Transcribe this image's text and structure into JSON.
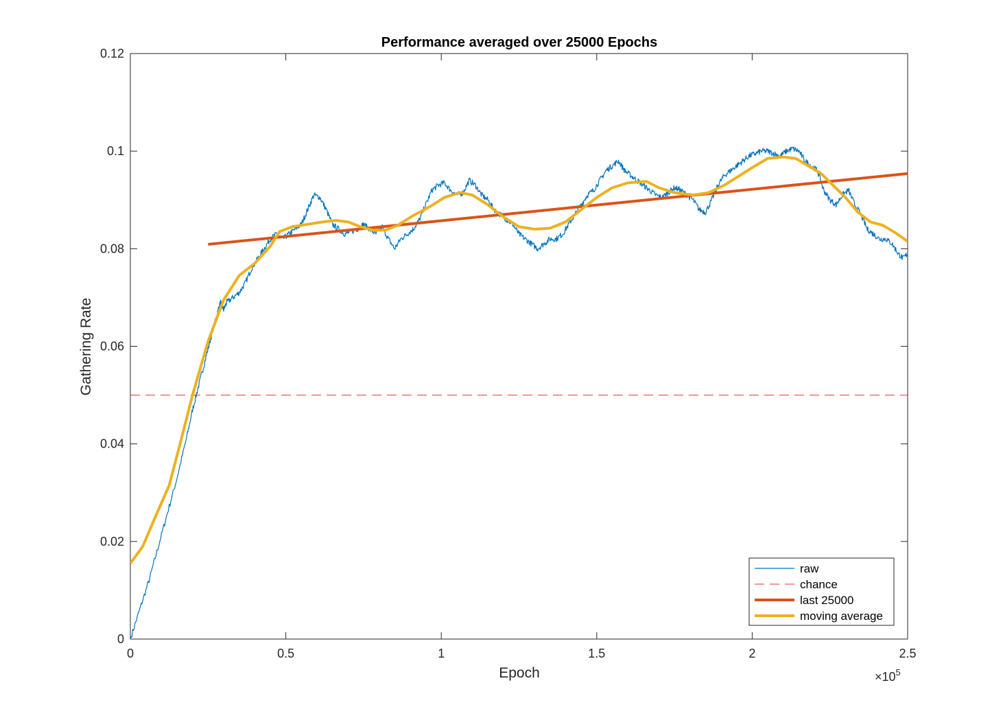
{
  "chart_data": {
    "type": "line",
    "title": "Performance averaged over 25000 Epochs",
    "xlabel": "Epoch",
    "ylabel": "Gathering Rate",
    "x_exponent_label": {
      "prefix": "×10",
      "exponent": "5"
    },
    "xlim": [
      0,
      250000
    ],
    "ylim": [
      0,
      0.12
    ],
    "x_ticks": [
      0,
      50000,
      100000,
      150000,
      200000,
      250000
    ],
    "x_tick_labels": [
      "0",
      "0.5",
      "1",
      "1.5",
      "2",
      "2.5"
    ],
    "y_ticks": [
      0,
      0.02,
      0.04,
      0.06,
      0.08,
      0.1,
      0.12
    ],
    "y_tick_labels": [
      "0",
      "0.02",
      "0.04",
      "0.06",
      "0.08",
      "0.1",
      "0.12"
    ],
    "grid": false,
    "legend_position": "bottom-right",
    "colors": {
      "raw": "#0072bd",
      "chance": "#e0352b",
      "last": "#d95319",
      "moving": "#edb120",
      "axis": "#262626"
    },
    "series": [
      {
        "name": "raw",
        "style": "thin-solid",
        "points": [
          [
            0,
            0
          ],
          [
            3000,
            0.006
          ],
          [
            6000,
            0.012
          ],
          [
            9000,
            0.019
          ],
          [
            12000,
            0.026
          ],
          [
            15000,
            0.033
          ],
          [
            18000,
            0.041
          ],
          [
            20000,
            0.047
          ],
          [
            22000,
            0.052
          ],
          [
            24000,
            0.057
          ],
          [
            26000,
            0.062
          ],
          [
            28000,
            0.067
          ],
          [
            29000,
            0.069
          ],
          [
            30000,
            0.0675
          ],
          [
            31000,
            0.069
          ],
          [
            33000,
            0.07
          ],
          [
            35000,
            0.071
          ],
          [
            37000,
            0.073
          ],
          [
            39000,
            0.076
          ],
          [
            41000,
            0.078
          ],
          [
            43000,
            0.08
          ],
          [
            45000,
            0.082
          ],
          [
            47000,
            0.083
          ],
          [
            49000,
            0.082
          ],
          [
            51000,
            0.083
          ],
          [
            53000,
            0.084
          ],
          [
            55000,
            0.085
          ],
          [
            57000,
            0.088
          ],
          [
            59000,
            0.091
          ],
          [
            61000,
            0.0905
          ],
          [
            63000,
            0.088
          ],
          [
            65000,
            0.085
          ],
          [
            67000,
            0.084
          ],
          [
            69000,
            0.083
          ],
          [
            71000,
            0.0835
          ],
          [
            73000,
            0.084
          ],
          [
            75000,
            0.085
          ],
          [
            77000,
            0.084
          ],
          [
            79000,
            0.083
          ],
          [
            81000,
            0.0845
          ],
          [
            83000,
            0.082
          ],
          [
            85000,
            0.08
          ],
          [
            87000,
            0.082
          ],
          [
            89000,
            0.083
          ],
          [
            91000,
            0.084
          ],
          [
            93000,
            0.086
          ],
          [
            95000,
            0.089
          ],
          [
            97000,
            0.092
          ],
          [
            99000,
            0.093
          ],
          [
            101000,
            0.0935
          ],
          [
            103000,
            0.092
          ],
          [
            105000,
            0.091
          ],
          [
            107000,
            0.0915
          ],
          [
            109000,
            0.094
          ],
          [
            111000,
            0.093
          ],
          [
            113000,
            0.091
          ],
          [
            115000,
            0.09
          ],
          [
            117000,
            0.088
          ],
          [
            119000,
            0.087
          ],
          [
            121000,
            0.086
          ],
          [
            123000,
            0.085
          ],
          [
            125000,
            0.083
          ],
          [
            127000,
            0.082
          ],
          [
            129000,
            0.081
          ],
          [
            131000,
            0.08
          ],
          [
            133000,
            0.081
          ],
          [
            135000,
            0.082
          ],
          [
            137000,
            0.082
          ],
          [
            139000,
            0.083
          ],
          [
            141000,
            0.085
          ],
          [
            143000,
            0.087
          ],
          [
            145000,
            0.089
          ],
          [
            147000,
            0.091
          ],
          [
            149000,
            0.092
          ],
          [
            151000,
            0.094
          ],
          [
            153000,
            0.096
          ],
          [
            155000,
            0.097
          ],
          [
            157000,
            0.098
          ],
          [
            159000,
            0.096
          ],
          [
            161000,
            0.095
          ],
          [
            163000,
            0.094
          ],
          [
            165000,
            0.093
          ],
          [
            167000,
            0.092
          ],
          [
            169000,
            0.091
          ],
          [
            171000,
            0.0905
          ],
          [
            173000,
            0.0915
          ],
          [
            175000,
            0.0925
          ],
          [
            177000,
            0.092
          ],
          [
            179000,
            0.091
          ],
          [
            181000,
            0.09
          ],
          [
            183000,
            0.088
          ],
          [
            185000,
            0.0875
          ],
          [
            187000,
            0.09
          ],
          [
            189000,
            0.093
          ],
          [
            191000,
            0.095
          ],
          [
            193000,
            0.096
          ],
          [
            195000,
            0.097
          ],
          [
            197000,
            0.098
          ],
          [
            199000,
            0.099
          ],
          [
            201000,
            0.0995
          ],
          [
            203000,
            0.1
          ],
          [
            205000,
            0.1
          ],
          [
            207000,
            0.0995
          ],
          [
            209000,
            0.099
          ],
          [
            211000,
            0.1
          ],
          [
            213000,
            0.1005
          ],
          [
            215000,
            0.1
          ],
          [
            217000,
            0.098
          ],
          [
            219000,
            0.097
          ],
          [
            221000,
            0.096
          ],
          [
            223000,
            0.092
          ],
          [
            225000,
            0.09
          ],
          [
            227000,
            0.089
          ],
          [
            229000,
            0.091
          ],
          [
            231000,
            0.092
          ],
          [
            233000,
            0.089
          ],
          [
            235000,
            0.087
          ],
          [
            237000,
            0.084
          ],
          [
            239000,
            0.083
          ],
          [
            241000,
            0.082
          ],
          [
            243000,
            0.082
          ],
          [
            245000,
            0.081
          ],
          [
            247000,
            0.079
          ],
          [
            248500,
            0.078
          ],
          [
            250000,
            0.079
          ]
        ]
      },
      {
        "name": "chance",
        "style": "dashed",
        "points": [
          [
            0,
            0.05
          ],
          [
            250000,
            0.05
          ]
        ]
      },
      {
        "name": "last 25000",
        "style": "thick-solid",
        "points": [
          [
            25000,
            0.0809
          ],
          [
            250000,
            0.0954
          ]
        ]
      },
      {
        "name": "moving average",
        "style": "thick-solid",
        "points": [
          [
            0,
            0.0155
          ],
          [
            4000,
            0.019
          ],
          [
            8000,
            0.025
          ],
          [
            12500,
            0.0315
          ],
          [
            16000,
            0.04
          ],
          [
            20000,
            0.05
          ],
          [
            25000,
            0.061
          ],
          [
            30000,
            0.0695
          ],
          [
            35000,
            0.0745
          ],
          [
            40000,
            0.077
          ],
          [
            45000,
            0.0805
          ],
          [
            48000,
            0.0835
          ],
          [
            52000,
            0.0845
          ],
          [
            57000,
            0.085
          ],
          [
            62000,
            0.0855
          ],
          [
            66000,
            0.0858
          ],
          [
            70000,
            0.0855
          ],
          [
            74000,
            0.0845
          ],
          [
            78000,
            0.0838
          ],
          [
            82000,
            0.0838
          ],
          [
            86000,
            0.0848
          ],
          [
            91000,
            0.0868
          ],
          [
            96000,
            0.0885
          ],
          [
            101000,
            0.0905
          ],
          [
            106000,
            0.0915
          ],
          [
            110000,
            0.091
          ],
          [
            115000,
            0.089
          ],
          [
            120000,
            0.0865
          ],
          [
            125000,
            0.0845
          ],
          [
            130000,
            0.084
          ],
          [
            135000,
            0.0842
          ],
          [
            140000,
            0.0855
          ],
          [
            145000,
            0.088
          ],
          [
            150000,
            0.0905
          ],
          [
            155000,
            0.0925
          ],
          [
            160000,
            0.0935
          ],
          [
            166000,
            0.0938
          ],
          [
            170000,
            0.0925
          ],
          [
            175000,
            0.0915
          ],
          [
            181000,
            0.091
          ],
          [
            186000,
            0.0915
          ],
          [
            191000,
            0.093
          ],
          [
            196000,
            0.095
          ],
          [
            201000,
            0.097
          ],
          [
            205000,
            0.0985
          ],
          [
            210000,
            0.0988
          ],
          [
            214000,
            0.0985
          ],
          [
            218000,
            0.097
          ],
          [
            222000,
            0.0955
          ],
          [
            226000,
            0.093
          ],
          [
            230000,
            0.0905
          ],
          [
            234000,
            0.0875
          ],
          [
            238000,
            0.0855
          ],
          [
            242000,
            0.0848
          ],
          [
            246000,
            0.0833
          ],
          [
            250000,
            0.0815
          ]
        ]
      }
    ]
  }
}
